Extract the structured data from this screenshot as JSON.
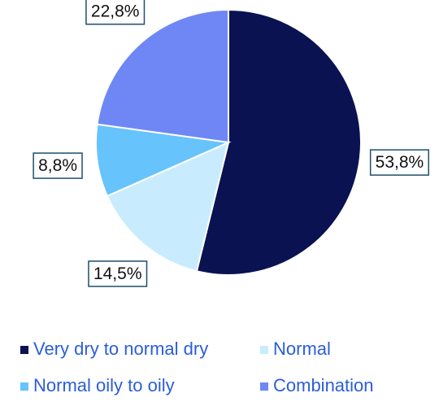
{
  "chart_data": {
    "type": "pie",
    "categories": [
      "Very dry to normal dry",
      "Normal",
      "Normal oily to oily",
      "Combination"
    ],
    "values": [
      53.8,
      14.5,
      8.8,
      22.8
    ],
    "value_labels": [
      "53,8%",
      "14,5%",
      "8,8%",
      "22,8%"
    ],
    "colors": [
      "#0b1252",
      "#c8ecfd",
      "#66c3fb",
      "#6f87f5"
    ],
    "legend": "bottom"
  }
}
